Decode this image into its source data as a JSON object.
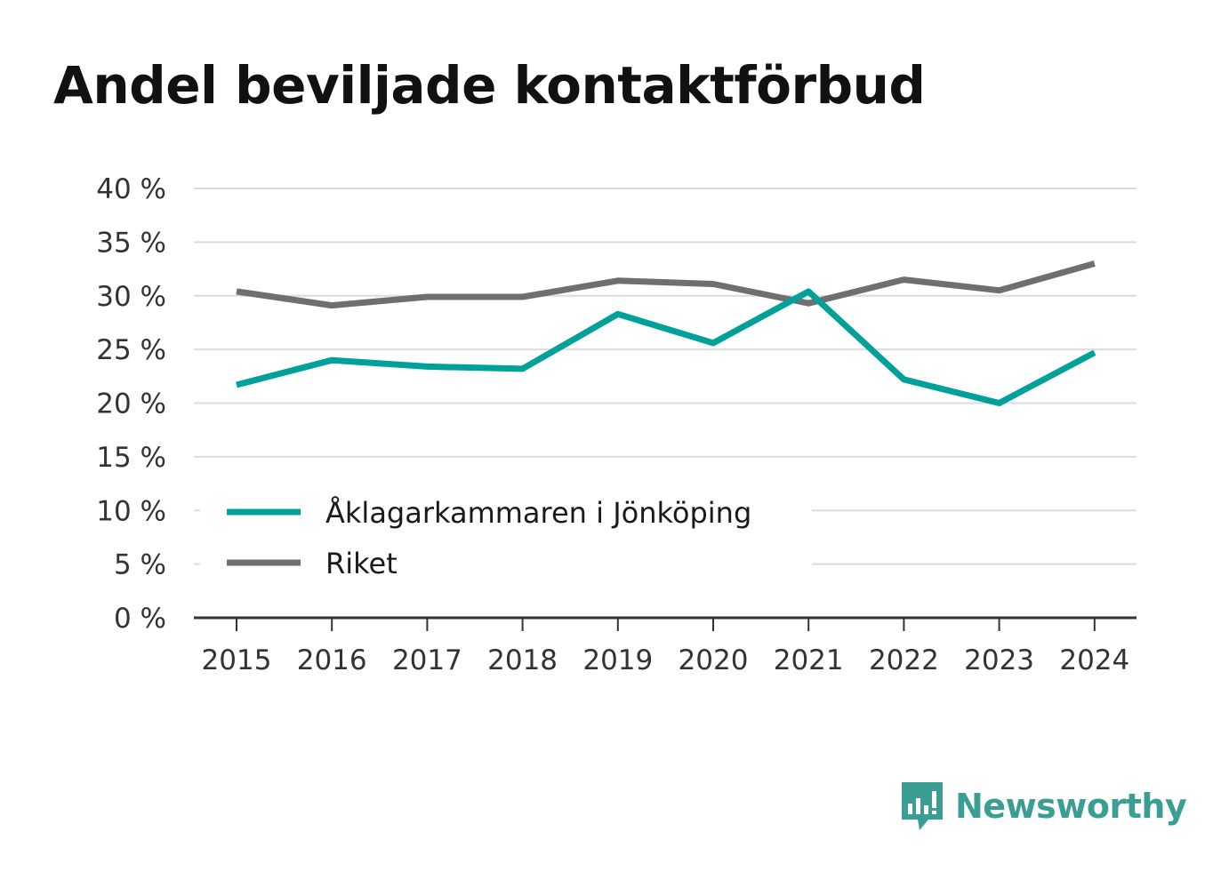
{
  "chart_data": {
    "type": "line",
    "title": "Andel beviljade kontaktförbud",
    "x": [
      "2015",
      "2016",
      "2017",
      "2018",
      "2019",
      "2020",
      "2021",
      "2022",
      "2023",
      "2024"
    ],
    "y_ticks": [
      "0 %",
      "5 %",
      "10 %",
      "15 %",
      "20 %",
      "25 %",
      "30 %",
      "35 %",
      "40 %"
    ],
    "ylim": [
      0,
      40
    ],
    "grid": true,
    "legend_position": "lower-left",
    "series": [
      {
        "name": "Åklagarkammaren i Jönköping",
        "color": "#00a19a",
        "values": [
          21.7,
          24.0,
          23.4,
          23.2,
          28.3,
          25.6,
          30.4,
          22.2,
          20.0,
          24.7
        ]
      },
      {
        "name": "Riket",
        "color": "#6e6e73",
        "values": [
          30.4,
          29.1,
          29.9,
          29.9,
          31.4,
          31.1,
          29.3,
          31.5,
          30.5,
          33.0
        ]
      }
    ]
  },
  "brand": {
    "name": "Newsworthy",
    "logo_icon": "chart-speech-bubble-icon",
    "color": "#3a9e94"
  }
}
